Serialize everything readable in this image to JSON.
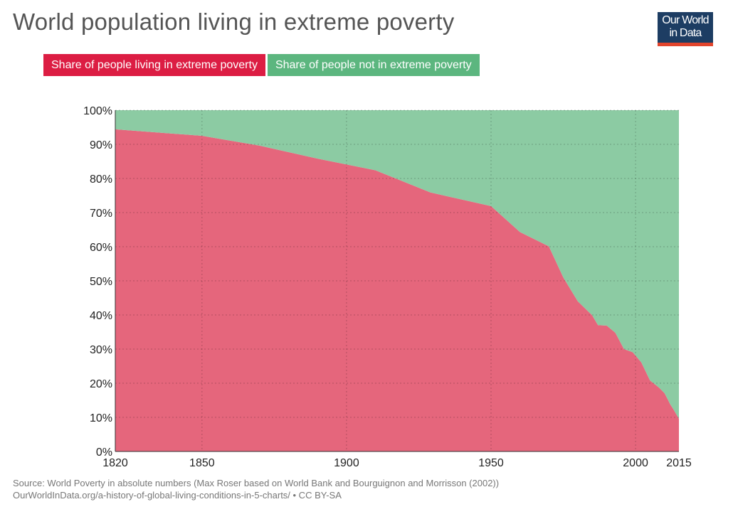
{
  "title": "World population living in extreme poverty",
  "logo": {
    "line1": "Our World",
    "line2": "in Data",
    "bg": "#1d3d63",
    "accent": "#e2442c"
  },
  "legend": [
    {
      "label": "Share of people living in extreme poverty",
      "color": "#dc1d43"
    },
    {
      "label": "Share of people not in extreme poverty",
      "color": "#5cb67f"
    }
  ],
  "source": {
    "line1": "Source: World Poverty in absolute numbers (Max Roser based on World Bank and Bourguignon and Morrisson (2002))",
    "line2": "OurWorldInData.org/a-history-of-global-living-conditions-in-5-charts/ • CC BY-SA"
  },
  "chart_data": {
    "type": "area",
    "stacked": true,
    "x": [
      1820,
      1850,
      1870,
      1890,
      1910,
      1929,
      1950,
      1960,
      1970,
      1975,
      1980,
      1985,
      1987,
      1990,
      1993,
      1996,
      1999,
      2002,
      2005,
      2008,
      2010,
      2011,
      2012,
      2013,
      2015
    ],
    "series": [
      {
        "name": "Share of people living in extreme poverty",
        "color": "#e5667c",
        "values": [
          94.4,
          92.5,
          89.6,
          85.8,
          82.4,
          75.9,
          71.9,
          64.3,
          60.1,
          51.0,
          44.0,
          39.9,
          37.0,
          36.9,
          34.8,
          30.0,
          29.1,
          26.1,
          20.8,
          18.8,
          17.1,
          15.5,
          13.8,
          12.5,
          9.6
        ]
      },
      {
        "name": "Share of people not in extreme poverty",
        "color": "#8ccba3",
        "values": [
          5.6,
          7.5,
          10.4,
          14.2,
          17.6,
          24.1,
          28.1,
          35.7,
          39.9,
          49.0,
          56.0,
          60.1,
          63.0,
          63.1,
          65.2,
          70.0,
          70.9,
          73.9,
          79.2,
          81.2,
          82.9,
          84.5,
          86.2,
          87.5,
          90.4
        ]
      }
    ],
    "xlim": [
      1820,
      2015
    ],
    "ylim": [
      0,
      100
    ],
    "x_ticks": [
      1820,
      1850,
      1900,
      1950,
      2000,
      2015
    ],
    "y_ticks": [
      0,
      10,
      20,
      30,
      40,
      50,
      60,
      70,
      80,
      90,
      100
    ],
    "y_tick_suffix": "%",
    "grid": true,
    "legend_position": "top-left"
  }
}
